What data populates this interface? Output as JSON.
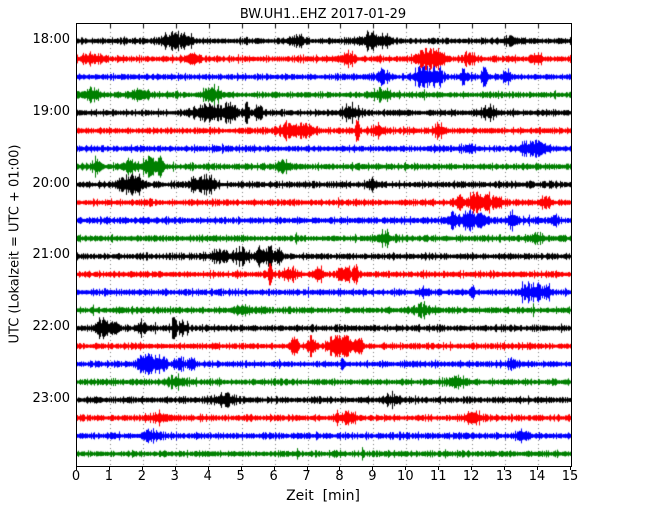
{
  "chart_data": {
    "type": "line",
    "subtype": "helicorder-dayplot",
    "title": "BW.UH1..EHZ 2017-01-29",
    "xlabel": "Zeit  [min]",
    "ylabel": "UTC (Lokalzeit = UTC + 01:00)",
    "xlim": [
      0,
      15
    ],
    "minutes_per_row": 15,
    "x_ticks": [
      "0",
      "1",
      "2",
      "3",
      "4",
      "5",
      "6",
      "7",
      "8",
      "9",
      "10",
      "11",
      "12",
      "13",
      "14",
      "15"
    ],
    "grid": "vertical-dotted-per-minute",
    "trace_color_cycle": [
      "#000000",
      "#ff0000",
      "#0000ff",
      "#008000"
    ],
    "y_tick_labels": [
      "18:00",
      "19:00",
      "20:00",
      "21:00",
      "22:00",
      "23:00"
    ],
    "rows": [
      {
        "label": "18:00",
        "color": "#000000",
        "events": [
          {
            "t": 2.9,
            "w": 0.35,
            "a": 1.9
          },
          {
            "t": 3.35,
            "w": 0.15,
            "a": 1.7
          },
          {
            "t": 6.7,
            "w": 0.2,
            "a": 1.5
          },
          {
            "t": 8.9,
            "w": 0.3,
            "a": 1.7
          },
          {
            "t": 9.4,
            "w": 0.15,
            "a": 1.5
          },
          {
            "t": 13.2,
            "w": 0.2,
            "a": 1.3
          }
        ]
      },
      {
        "label": "",
        "color": "#ff0000",
        "events": [
          {
            "t": 0.5,
            "w": 0.3,
            "a": 1.3
          },
          {
            "t": 3.5,
            "w": 0.2,
            "a": 1.8
          },
          {
            "t": 8.2,
            "w": 0.25,
            "a": 1.4
          },
          {
            "t": 10.6,
            "w": 0.3,
            "a": 3.0
          },
          {
            "t": 11.0,
            "w": 0.15,
            "a": 2.3
          },
          {
            "t": 11.9,
            "w": 0.18,
            "a": 1.8
          },
          {
            "t": 13.9,
            "w": 0.15,
            "a": 1.6
          }
        ]
      },
      {
        "label": "",
        "color": "#0000ff",
        "events": [
          {
            "t": 9.3,
            "w": 0.2,
            "a": 1.4
          },
          {
            "t": 10.55,
            "w": 0.3,
            "a": 3.4
          },
          {
            "t": 10.95,
            "w": 0.15,
            "a": 2.3
          },
          {
            "t": 11.75,
            "w": 0.08,
            "a": 2.2
          },
          {
            "t": 12.35,
            "w": 0.08,
            "a": 2.0
          },
          {
            "t": 13.05,
            "w": 0.1,
            "a": 1.8
          }
        ]
      },
      {
        "label": "",
        "color": "#008000",
        "events": [
          {
            "t": 0.4,
            "w": 0.3,
            "a": 1.5
          },
          {
            "t": 1.9,
            "w": 0.3,
            "a": 1.5
          },
          {
            "t": 4.1,
            "w": 0.3,
            "a": 1.7
          },
          {
            "t": 9.2,
            "w": 0.3,
            "a": 1.3
          }
        ]
      },
      {
        "label": "19:00",
        "color": "#000000",
        "events": [
          {
            "t": 4.0,
            "w": 0.5,
            "a": 2.4
          },
          {
            "t": 4.65,
            "w": 0.2,
            "a": 3.0
          },
          {
            "t": 5.15,
            "w": 0.06,
            "a": 5.0
          },
          {
            "t": 5.5,
            "w": 0.12,
            "a": 2.0
          },
          {
            "t": 8.3,
            "w": 0.3,
            "a": 1.7
          },
          {
            "t": 12.5,
            "w": 0.25,
            "a": 1.4
          }
        ]
      },
      {
        "label": "",
        "color": "#ff0000",
        "events": [
          {
            "t": 6.5,
            "w": 0.35,
            "a": 2.0
          },
          {
            "t": 7.0,
            "w": 0.2,
            "a": 1.7
          },
          {
            "t": 8.5,
            "w": 0.05,
            "a": 4.5
          },
          {
            "t": 9.1,
            "w": 0.2,
            "a": 1.4
          },
          {
            "t": 11.0,
            "w": 0.2,
            "a": 1.3
          }
        ]
      },
      {
        "label": "",
        "color": "#0000ff",
        "events": [
          {
            "t": 11.9,
            "w": 0.15,
            "a": 1.4
          },
          {
            "t": 13.6,
            "w": 0.15,
            "a": 1.7
          },
          {
            "t": 14.0,
            "w": 0.25,
            "a": 2.3
          }
        ]
      },
      {
        "label": "",
        "color": "#008000",
        "events": [
          {
            "t": 0.6,
            "w": 0.15,
            "a": 2.0
          },
          {
            "t": 1.6,
            "w": 0.2,
            "a": 1.9
          },
          {
            "t": 2.2,
            "w": 0.22,
            "a": 2.8
          },
          {
            "t": 2.5,
            "w": 0.1,
            "a": 2.2
          },
          {
            "t": 6.3,
            "w": 0.25,
            "a": 1.5
          }
        ]
      },
      {
        "label": "20:00",
        "color": "#000000",
        "events": [
          {
            "t": 1.5,
            "w": 0.3,
            "a": 2.3
          },
          {
            "t": 1.85,
            "w": 0.15,
            "a": 2.0
          },
          {
            "t": 3.7,
            "w": 0.3,
            "a": 2.0
          },
          {
            "t": 4.05,
            "w": 0.15,
            "a": 1.7
          },
          {
            "t": 8.9,
            "w": 0.15,
            "a": 1.4
          }
        ]
      },
      {
        "label": "",
        "color": "#ff0000",
        "events": [
          {
            "t": 11.6,
            "w": 0.15,
            "a": 1.9
          },
          {
            "t": 12.1,
            "w": 0.22,
            "a": 3.0
          },
          {
            "t": 12.45,
            "w": 0.08,
            "a": 4.3
          },
          {
            "t": 12.75,
            "w": 0.15,
            "a": 2.0
          },
          {
            "t": 14.2,
            "w": 0.12,
            "a": 1.5
          }
        ]
      },
      {
        "label": "",
        "color": "#0000ff",
        "events": [
          {
            "t": 11.4,
            "w": 0.2,
            "a": 1.8
          },
          {
            "t": 11.9,
            "w": 0.25,
            "a": 2.7
          },
          {
            "t": 12.3,
            "w": 0.15,
            "a": 2.0
          },
          {
            "t": 13.2,
            "w": 0.15,
            "a": 1.7
          },
          {
            "t": 14.5,
            "w": 0.1,
            "a": 1.5
          }
        ]
      },
      {
        "label": "",
        "color": "#008000",
        "events": [
          {
            "t": 9.3,
            "w": 0.25,
            "a": 1.4
          },
          {
            "t": 13.9,
            "w": 0.2,
            "a": 1.3
          }
        ]
      },
      {
        "label": "21:00",
        "color": "#000000",
        "events": [
          {
            "t": 4.3,
            "w": 0.3,
            "a": 1.7
          },
          {
            "t": 5.0,
            "w": 0.2,
            "a": 1.9
          },
          {
            "t": 5.6,
            "w": 0.18,
            "a": 2.6
          },
          {
            "t": 5.85,
            "w": 0.07,
            "a": 4.3
          },
          {
            "t": 6.1,
            "w": 0.1,
            "a": 2.0
          }
        ]
      },
      {
        "label": "",
        "color": "#ff0000",
        "events": [
          {
            "t": 5.85,
            "w": 0.06,
            "a": 4.6
          },
          {
            "t": 6.45,
            "w": 0.2,
            "a": 1.7
          },
          {
            "t": 7.3,
            "w": 0.15,
            "a": 2.1
          },
          {
            "t": 8.1,
            "w": 0.2,
            "a": 2.1
          },
          {
            "t": 8.45,
            "w": 0.1,
            "a": 1.9
          }
        ]
      },
      {
        "label": "",
        "color": "#0000ff",
        "events": [
          {
            "t": 10.5,
            "w": 0.12,
            "a": 1.4
          },
          {
            "t": 12.0,
            "w": 0.1,
            "a": 1.4
          },
          {
            "t": 13.6,
            "w": 0.15,
            "a": 1.9
          },
          {
            "t": 13.95,
            "w": 0.2,
            "a": 2.6
          },
          {
            "t": 14.3,
            "w": 0.1,
            "a": 1.9
          }
        ]
      },
      {
        "label": "",
        "color": "#008000",
        "events": [
          {
            "t": 5.0,
            "w": 0.3,
            "a": 1.2
          },
          {
            "t": 10.5,
            "w": 0.3,
            "a": 1.2
          }
        ]
      },
      {
        "label": "22:00",
        "color": "#000000",
        "events": [
          {
            "t": 0.75,
            "w": 0.22,
            "a": 2.6
          },
          {
            "t": 1.1,
            "w": 0.15,
            "a": 2.0
          },
          {
            "t": 2.0,
            "w": 0.15,
            "a": 1.5
          },
          {
            "t": 2.95,
            "w": 0.07,
            "a": 3.4
          },
          {
            "t": 3.2,
            "w": 0.1,
            "a": 1.7
          }
        ]
      },
      {
        "label": "",
        "color": "#ff0000",
        "events": [
          {
            "t": 6.6,
            "w": 0.1,
            "a": 2.0
          },
          {
            "t": 7.1,
            "w": 0.12,
            "a": 2.3
          },
          {
            "t": 7.8,
            "w": 0.2,
            "a": 2.6
          },
          {
            "t": 8.15,
            "w": 0.22,
            "a": 3.6
          },
          {
            "t": 8.55,
            "w": 0.12,
            "a": 2.3
          }
        ]
      },
      {
        "label": "",
        "color": "#0000ff",
        "events": [
          {
            "t": 2.1,
            "w": 0.28,
            "a": 2.8
          },
          {
            "t": 2.55,
            "w": 0.18,
            "a": 2.1
          },
          {
            "t": 3.1,
            "w": 0.12,
            "a": 1.9
          },
          {
            "t": 3.45,
            "w": 0.1,
            "a": 2.0
          },
          {
            "t": 8.05,
            "w": 0.05,
            "a": 1.8
          },
          {
            "t": 13.2,
            "w": 0.15,
            "a": 1.3
          }
        ]
      },
      {
        "label": "",
        "color": "#008000",
        "events": [
          {
            "t": 3.0,
            "w": 0.3,
            "a": 1.15
          },
          {
            "t": 11.5,
            "w": 0.3,
            "a": 1.15
          }
        ]
      },
      {
        "label": "23:00",
        "color": "#000000",
        "events": [
          {
            "t": 4.5,
            "w": 0.4,
            "a": 1.2
          },
          {
            "t": 9.5,
            "w": 0.3,
            "a": 1.2
          }
        ]
      },
      {
        "label": "",
        "color": "#ff0000",
        "events": [
          {
            "t": 2.5,
            "w": 0.3,
            "a": 1.2
          },
          {
            "t": 8.2,
            "w": 0.3,
            "a": 1.25
          },
          {
            "t": 12.0,
            "w": 0.3,
            "a": 1.2
          }
        ]
      },
      {
        "label": "",
        "color": "#0000ff",
        "events": [
          {
            "t": 2.2,
            "w": 0.3,
            "a": 1.3
          },
          {
            "t": 13.5,
            "w": 0.2,
            "a": 1.2
          }
        ]
      },
      {
        "label": "",
        "color": "#008000",
        "events": []
      }
    ]
  }
}
